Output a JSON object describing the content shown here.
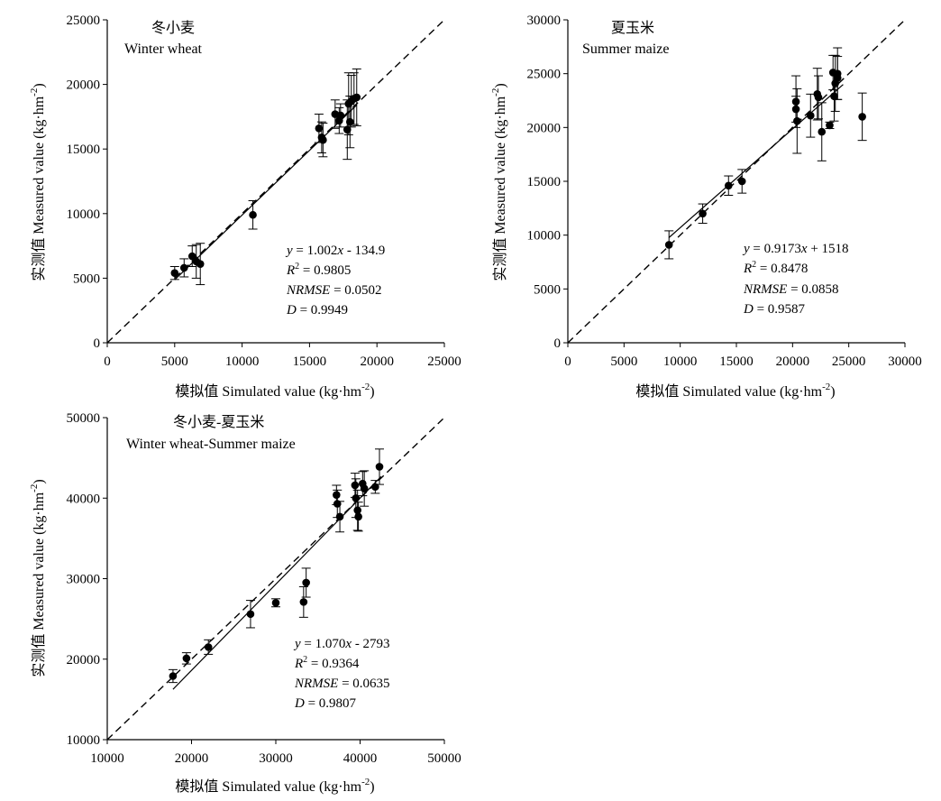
{
  "figure": {
    "x_axis_title": "模拟值 Simulated value (kg·hm",
    "x_axis_unit_sup": "-2",
    "y_axis_title": "实测值 Measured value (kg·hm",
    "y_axis_unit_sup": "-2",
    "axis_title_close": ")"
  },
  "chart_data": [
    {
      "type": "scatter",
      "title_cn": "冬小麦",
      "title_en": "Winter wheat",
      "xlim": [
        0,
        25000
      ],
      "ylim": [
        0,
        25000
      ],
      "xticks": [
        0,
        5000,
        10000,
        15000,
        20000,
        25000
      ],
      "yticks": [
        0,
        5000,
        10000,
        15000,
        20000,
        25000
      ],
      "xtick_labels": [
        "0",
        "5000",
        "10000",
        "15000",
        "20000",
        "25000"
      ],
      "ytick_labels": [
        "0",
        "5000",
        "10000",
        "15000",
        "20000",
        "25000"
      ],
      "reference_line": "1:1",
      "fit": {
        "slope": 1.002,
        "intercept": -134.9,
        "x_range": [
          5000,
          18500
        ]
      },
      "stats": {
        "eq_y": "y",
        "eq_mid": " = 1.002",
        "eq_x": "x",
        "eq_rest": " - 134.9",
        "r2_label": "R",
        "r2_sup": "2",
        "r2_value": " = 0.9805",
        "nrmse_label": "NRMSE",
        "nrmse_value": " = 0.0502",
        "d_label": "D",
        "d_value": " = 0.9949"
      },
      "points": [
        {
          "x": 5000,
          "y": 5400,
          "err": 500
        },
        {
          "x": 5700,
          "y": 5800,
          "err": 700
        },
        {
          "x": 6300,
          "y": 6700,
          "err": 800
        },
        {
          "x": 6600,
          "y": 6300,
          "err": 1300
        },
        {
          "x": 6900,
          "y": 6100,
          "err": 1600
        },
        {
          "x": 10800,
          "y": 9900,
          "err": 1100
        },
        {
          "x": 15700,
          "y": 16600,
          "err": 1100
        },
        {
          "x": 15900,
          "y": 15900,
          "err": 1200
        },
        {
          "x": 16000,
          "y": 15700,
          "err": 1300
        },
        {
          "x": 16900,
          "y": 17700,
          "err": 1100
        },
        {
          "x": 17200,
          "y": 17200,
          "err": 1000
        },
        {
          "x": 17300,
          "y": 17600,
          "err": 900
        },
        {
          "x": 17800,
          "y": 16500,
          "err": 2300
        },
        {
          "x": 17900,
          "y": 18500,
          "err": 2400
        },
        {
          "x": 18000,
          "y": 17100,
          "err": 2000
        },
        {
          "x": 18100,
          "y": 18700,
          "err": 2000
        },
        {
          "x": 18300,
          "y": 18900,
          "err": 2000
        },
        {
          "x": 18500,
          "y": 19000,
          "err": 2200
        }
      ]
    },
    {
      "type": "scatter",
      "title_cn": "夏玉米",
      "title_en": "Summer maize",
      "xlim": [
        0,
        30000
      ],
      "ylim": [
        0,
        30000
      ],
      "xticks": [
        0,
        5000,
        10000,
        15000,
        20000,
        25000,
        30000
      ],
      "yticks": [
        0,
        5000,
        10000,
        15000,
        20000,
        25000,
        30000
      ],
      "xtick_labels": [
        "0",
        "5000",
        "10000",
        "15000",
        "20000",
        "25000",
        "30000"
      ],
      "ytick_labels": [
        "0",
        "5000",
        "10000",
        "15000",
        "20000",
        "25000",
        "30000"
      ],
      "reference_line": "1:1",
      "fit": {
        "slope": 0.9173,
        "intercept": 1518,
        "x_range": [
          9000,
          24500
        ]
      },
      "stats": {
        "eq_y": "y",
        "eq_mid": " = 0.9173",
        "eq_x": "x",
        "eq_rest": " + 1518",
        "r2_label": "R",
        "r2_sup": "2",
        "r2_value": " = 0.8478",
        "nrmse_label": "NRMSE",
        "nrmse_value": " = 0.0858",
        "d_label": "D",
        "d_value": " = 0.9587"
      },
      "points": [
        {
          "x": 9000,
          "y": 9100,
          "err": 1300
        },
        {
          "x": 12000,
          "y": 12000,
          "err": 900
        },
        {
          "x": 14300,
          "y": 14600,
          "err": 900
        },
        {
          "x": 15500,
          "y": 15000,
          "err": 1100
        },
        {
          "x": 20300,
          "y": 22400,
          "err": 2400
        },
        {
          "x": 20300,
          "y": 21700,
          "err": 1200
        },
        {
          "x": 20400,
          "y": 20600,
          "err": 3000
        },
        {
          "x": 21600,
          "y": 21100,
          "err": 2000
        },
        {
          "x": 22200,
          "y": 23100,
          "err": 2400
        },
        {
          "x": 22300,
          "y": 22800,
          "err": 2000
        },
        {
          "x": 22600,
          "y": 19600,
          "err": 2700
        },
        {
          "x": 23300,
          "y": 20200,
          "err": 300
        },
        {
          "x": 23600,
          "y": 25100,
          "err": 1600
        },
        {
          "x": 23700,
          "y": 22900,
          "err": 2300
        },
        {
          "x": 23800,
          "y": 24100,
          "err": 2600
        },
        {
          "x": 24000,
          "y": 25000,
          "err": 2400
        },
        {
          "x": 24000,
          "y": 24600,
          "err": 2000
        },
        {
          "x": 26200,
          "y": 21000,
          "err": 2200
        }
      ]
    },
    {
      "type": "scatter",
      "title_cn": "冬小麦-夏玉米",
      "title_en": "Winter wheat-Summer maize",
      "xlim": [
        10000,
        50000
      ],
      "ylim": [
        10000,
        50000
      ],
      "xticks": [
        10000,
        20000,
        30000,
        40000,
        50000
      ],
      "yticks": [
        10000,
        20000,
        30000,
        40000,
        50000
      ],
      "xtick_labels": [
        "10000",
        "20000",
        "30000",
        "40000",
        "50000"
      ],
      "ytick_labels": [
        "10000",
        "20000",
        "30000",
        "40000",
        "50000"
      ],
      "reference_line": "1:1",
      "fit": {
        "slope": 1.07,
        "intercept": -2793,
        "x_range": [
          17800,
          42500
        ]
      },
      "stats": {
        "eq_y": "y",
        "eq_mid": " = 1.070",
        "eq_x": "x",
        "eq_rest": " - 2793",
        "r2_label": "R",
        "r2_sup": "2",
        "r2_value": " = 0.9364",
        "nrmse_label": "NRMSE",
        "nrmse_value": " = 0.0635",
        "d_label": "D",
        "d_value": " = 0.9807"
      },
      "points": [
        {
          "x": 17800,
          "y": 17900,
          "err": 800
        },
        {
          "x": 19400,
          "y": 20100,
          "err": 700
        },
        {
          "x": 22000,
          "y": 21500,
          "err": 900
        },
        {
          "x": 27000,
          "y": 25600,
          "err": 1700
        },
        {
          "x": 30000,
          "y": 27000,
          "err": 500
        },
        {
          "x": 33300,
          "y": 27100,
          "err": 1900
        },
        {
          "x": 33600,
          "y": 29500,
          "err": 1800
        },
        {
          "x": 37200,
          "y": 40400,
          "err": 1200
        },
        {
          "x": 37300,
          "y": 39300,
          "err": 1700
        },
        {
          "x": 37600,
          "y": 37700,
          "err": 1900
        },
        {
          "x": 39400,
          "y": 41600,
          "err": 1500
        },
        {
          "x": 39500,
          "y": 40000,
          "err": 2400
        },
        {
          "x": 39700,
          "y": 38500,
          "err": 2500
        },
        {
          "x": 39800,
          "y": 37700,
          "err": 1800
        },
        {
          "x": 40300,
          "y": 41800,
          "err": 1500
        },
        {
          "x": 40500,
          "y": 41200,
          "err": 2200
        },
        {
          "x": 41800,
          "y": 41400,
          "err": 800
        },
        {
          "x": 42300,
          "y": 43900,
          "err": 2200
        }
      ]
    }
  ]
}
